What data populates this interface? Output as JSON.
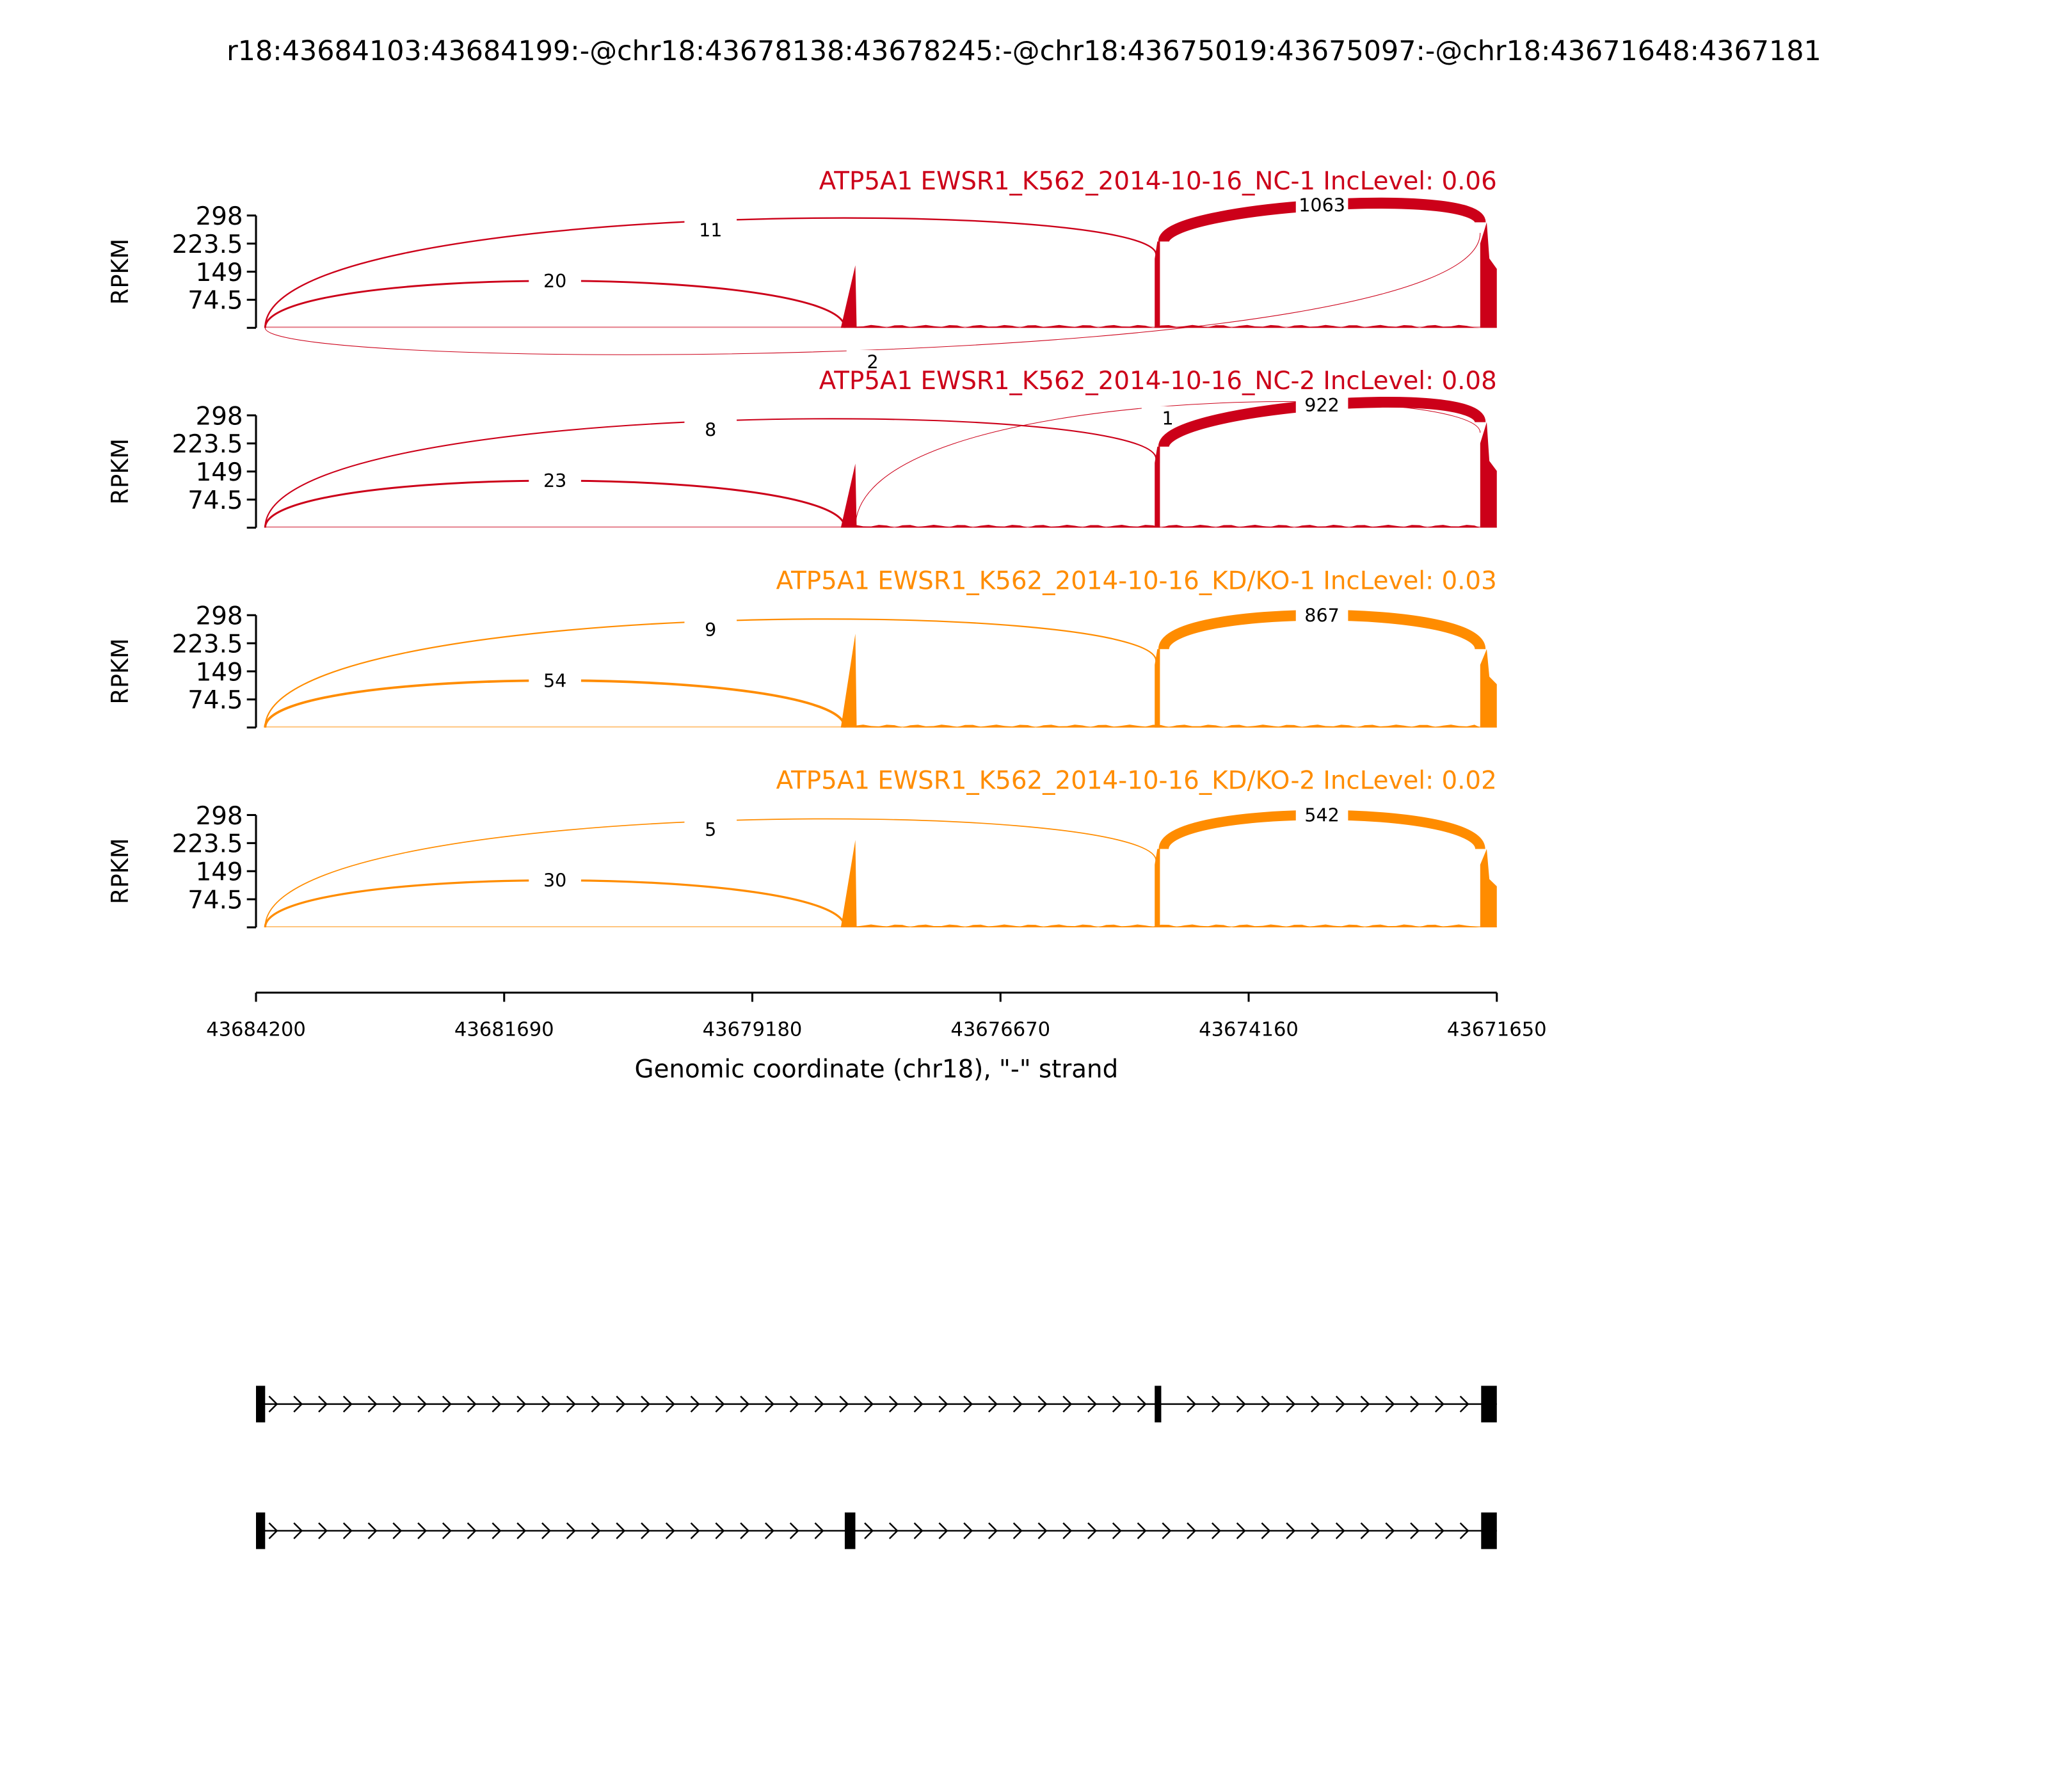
{
  "chart_data": {
    "type": "sashimi",
    "title": "r18:43684103:43684199:-@chr18:43678138:43678245:-@chr18:43675019:43675097:-@chr18:43671648:4367181",
    "xlabel": "Genomic coordinate (chr18), \"-\" strand",
    "ylabel": "RPKM",
    "xlim": [
      43684200,
      43671650
    ],
    "x_ticks": [
      "43684200",
      "43681690",
      "43679180",
      "43676670",
      "43674160",
      "43671650"
    ],
    "x_tick_values": [
      43684200,
      43681690,
      43679180,
      43676670,
      43674160,
      43671650
    ],
    "ylim": [
      0,
      298
    ],
    "y_ticks": [
      "298",
      "223.5",
      "149",
      "74.5"
    ],
    "y_tick_values": [
      298,
      223.5,
      149,
      74.5,
      0
    ],
    "exons": {
      "A": [
        43684103,
        43684199
      ],
      "B": [
        43678138,
        43678245
      ],
      "C": [
        43675019,
        43675097
      ],
      "D": [
        43671648,
        43671818
      ]
    },
    "colors": {
      "NC": "#cc0019",
      "KD": "#ff8c00"
    },
    "samples": [
      {
        "title": "ATP5A1 EWSR1_K562_2014-10-16_NC-1 IncLevel: 0.06",
        "group": "NC",
        "coverage_peaks": {
          "B": 166,
          "C": 229,
          "D": [
            280,
            184
          ]
        },
        "junctions": [
          {
            "from": "A",
            "to": "B",
            "count": "20",
            "side": "above"
          },
          {
            "from": "A",
            "to": "C",
            "count": "11",
            "side": "above"
          },
          {
            "from": "C",
            "to": "D",
            "count": "1063",
            "side": "above"
          },
          {
            "from": "A",
            "to": "D",
            "count": "2",
            "side": "below"
          }
        ]
      },
      {
        "title": "ATP5A1 EWSR1_K562_2014-10-16_NC-2 IncLevel: 0.08",
        "group": "NC",
        "coverage_peaks": {
          "B": 170,
          "C": 215,
          "D": [
            280,
            177
          ]
        },
        "junctions": [
          {
            "from": "A",
            "to": "B",
            "count": "23",
            "side": "above"
          },
          {
            "from": "A",
            "to": "C",
            "count": "8",
            "side": "above"
          },
          {
            "from": "B",
            "to": "D",
            "count": "1",
            "side": "above"
          },
          {
            "from": "C",
            "to": "D",
            "count": "922",
            "side": "above"
          }
        ]
      },
      {
        "title": "ATP5A1 EWSR1_K562_2014-10-16_KD/KO-1 IncLevel: 0.03",
        "group": "KD",
        "coverage_peaks": {
          "B": 249,
          "C": 208,
          "D": [
            208,
            135
          ]
        },
        "junctions": [
          {
            "from": "A",
            "to": "B",
            "count": "54",
            "side": "above"
          },
          {
            "from": "A",
            "to": "C",
            "count": "9",
            "side": "above"
          },
          {
            "from": "C",
            "to": "D",
            "count": "867",
            "side": "above"
          }
        ]
      },
      {
        "title": "ATP5A1 EWSR1_K562_2014-10-16_KD/KO-2 IncLevel: 0.02",
        "group": "KD",
        "coverage_peaks": {
          "B": 232,
          "C": 208,
          "D": [
            208,
            128
          ]
        },
        "junctions": [
          {
            "from": "A",
            "to": "B",
            "count": "30",
            "side": "above"
          },
          {
            "from": "A",
            "to": "C",
            "count": "5",
            "side": "above"
          },
          {
            "from": "C",
            "to": "D",
            "count": "542",
            "side": "above"
          }
        ]
      }
    ],
    "transcripts": [
      {
        "exons": [
          "A",
          "C",
          "D"
        ]
      },
      {
        "exons": [
          "A",
          "B",
          "D"
        ]
      }
    ]
  }
}
